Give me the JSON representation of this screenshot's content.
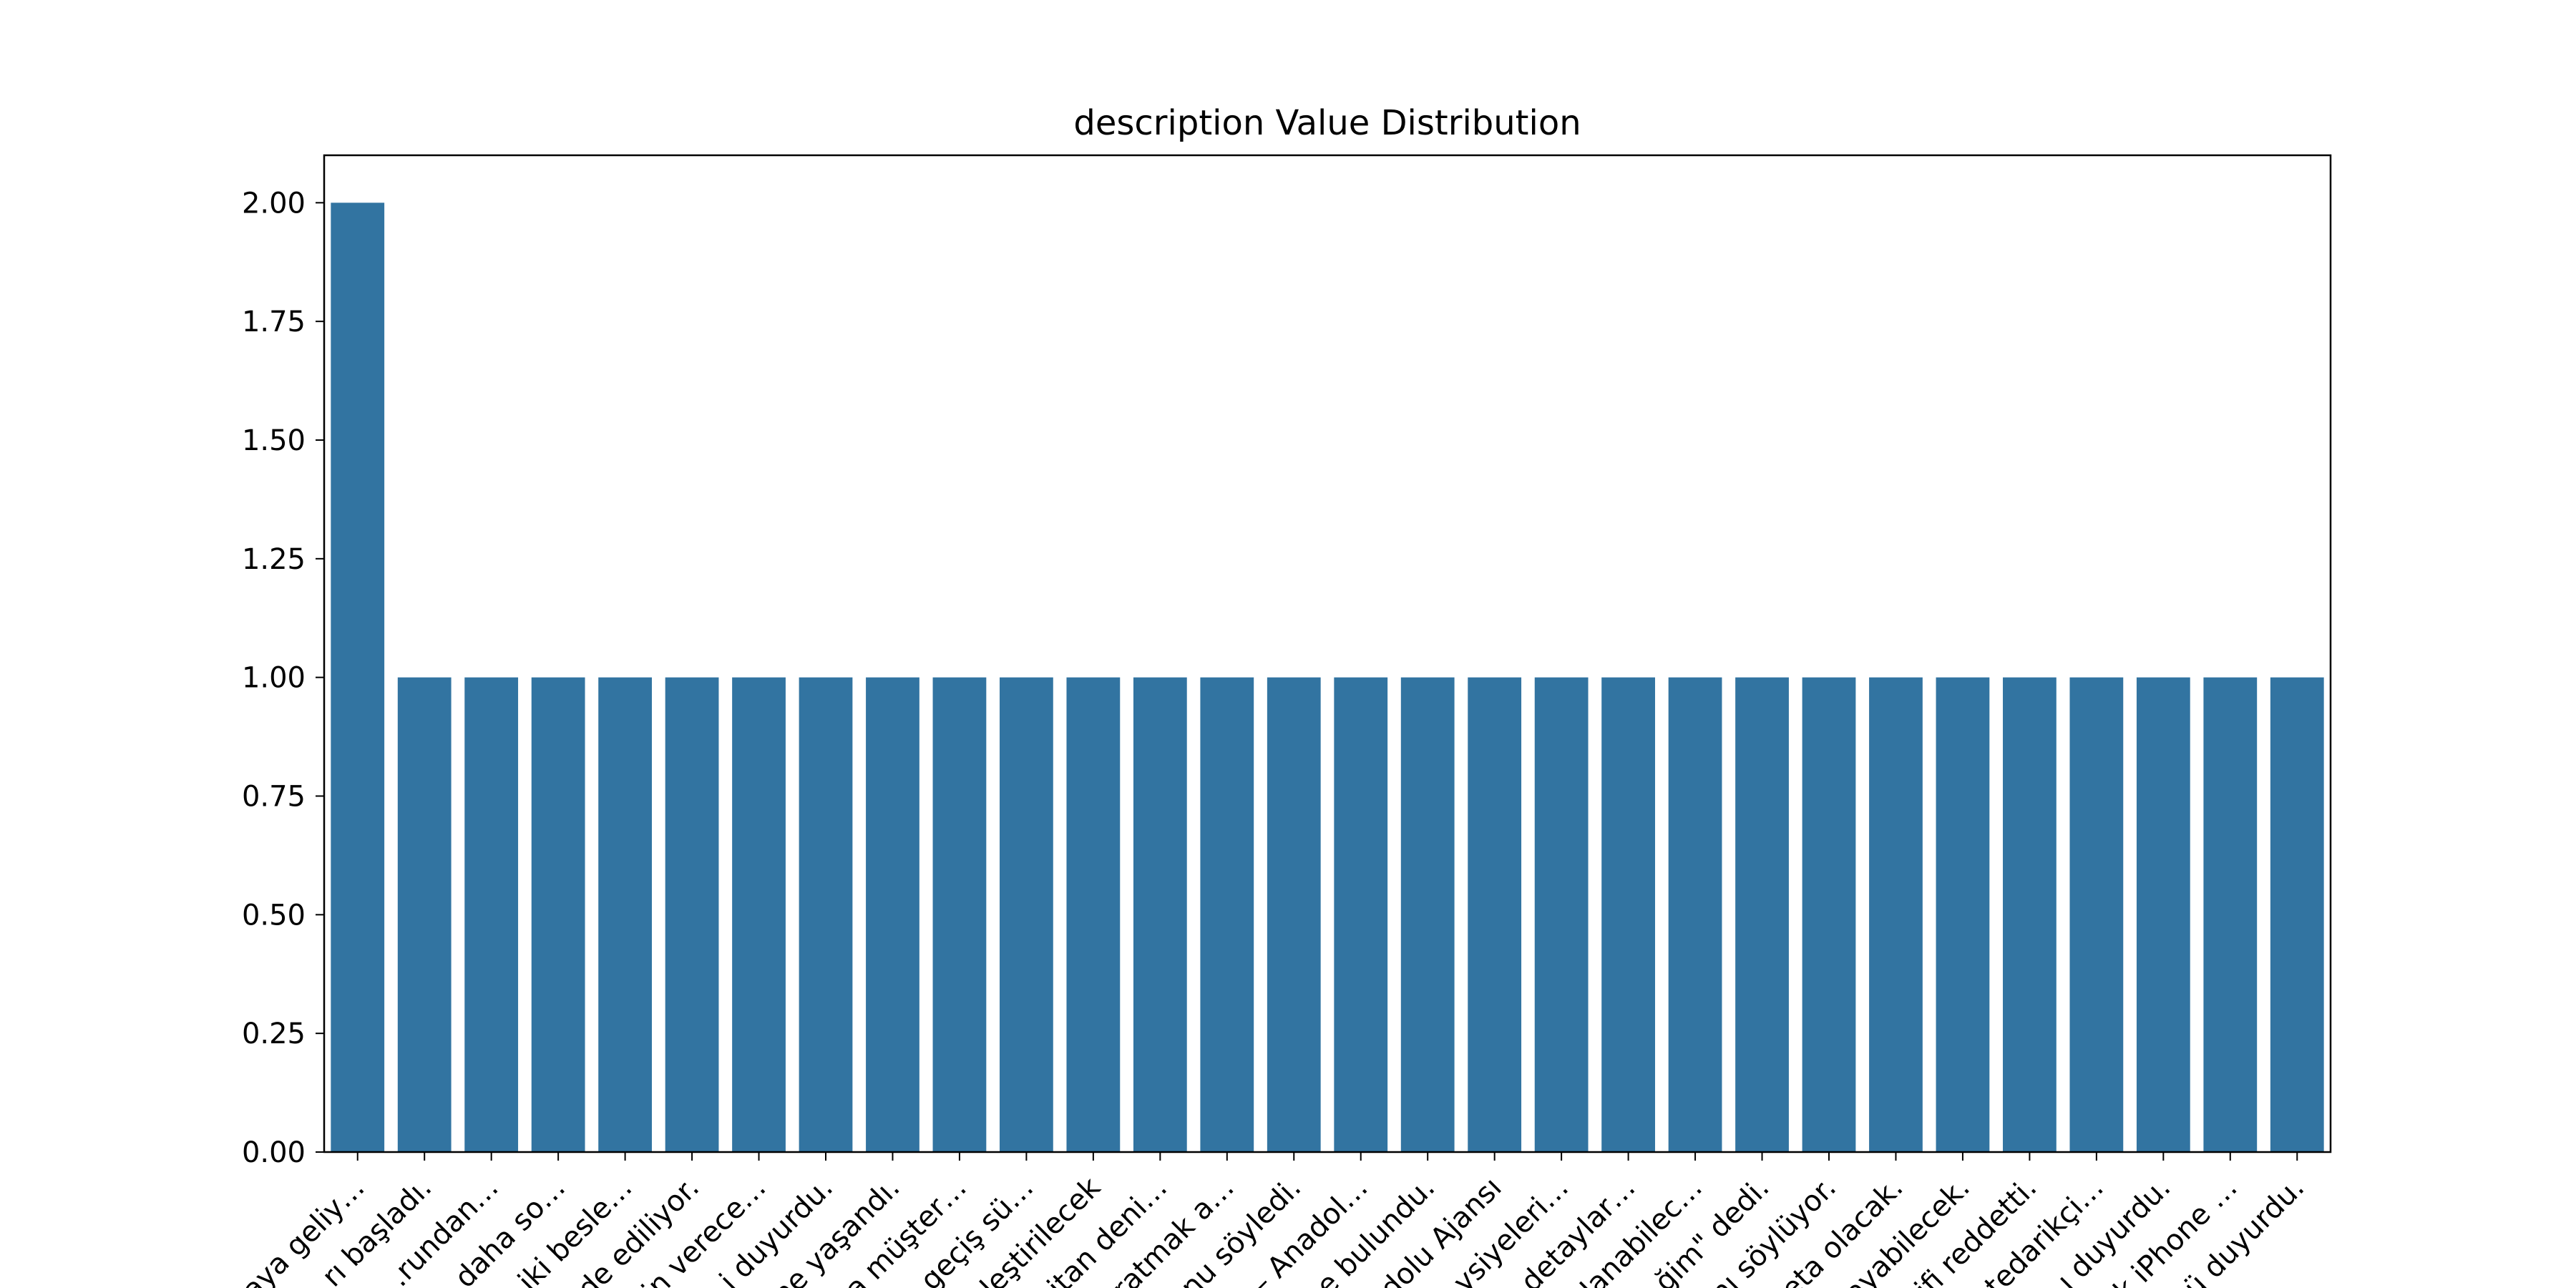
{
  "chart_data": {
    "type": "bar",
    "title": "description Value Distribution",
    "xlabel": "",
    "ylabel": "",
    "ylim": [
      0,
      2.1
    ],
    "yticks": [
      "0.00",
      "0.25",
      "0.50",
      "0.75",
      "1.00",
      "1.25",
      "1.50",
      "1.75",
      "2.00"
    ],
    "grid": false,
    "bar_color": "#3274a1",
    "categories": [
      "…aya geliy…",
      "…rı başladı.",
      "…rundan…",
      "…daha so…",
      "…iki besle…",
      "…de ediliyor.",
      "…in verece…",
      "…i duyurdu.",
      "…ne yaşandı.",
      "…a müşter…",
      "…geçiş sü…",
      "…leştirilecek",
      "…itan deni…",
      "…ratmak a…",
      "…nu söyledi.",
      "… – Anadol…",
      "…e bulundu.",
      "…dolu Ajansı",
      "…ysiyeleri…",
      "…detaylar…",
      "…ılanabilec…",
      "…ğim\" dedi.",
      "…nı söylüyor.",
      "…eta olacak.",
      "…ayabilecek.",
      "…ifi reddetti.",
      "…tedarikçi…",
      "…ı duyurdu.",
      "…k iPhone …",
      "…ü duyurdu."
    ],
    "values": [
      2,
      1,
      1,
      1,
      1,
      1,
      1,
      1,
      1,
      1,
      1,
      1,
      1,
      1,
      1,
      1,
      1,
      1,
      1,
      1,
      1,
      1,
      1,
      1,
      1,
      1,
      1,
      1,
      1,
      1
    ]
  }
}
